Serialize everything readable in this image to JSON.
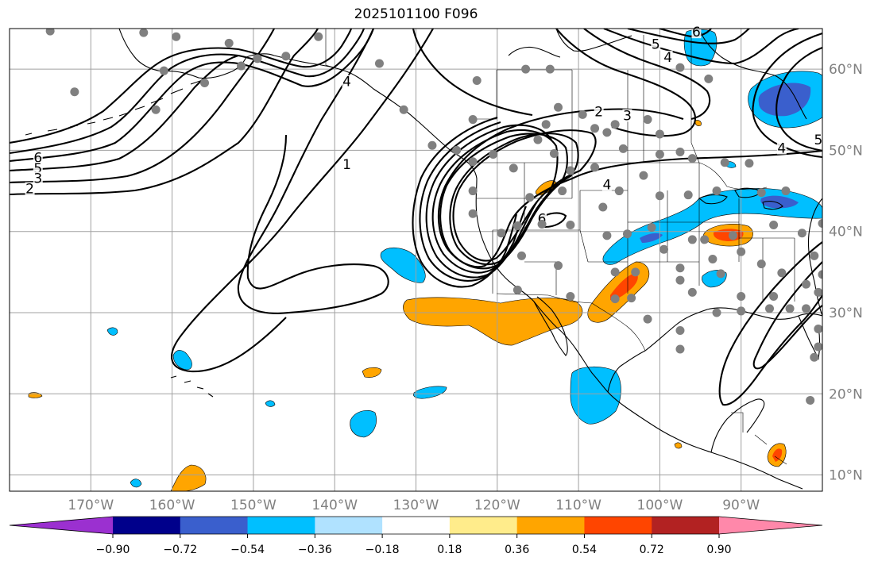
{
  "title": "2025101100 F096",
  "colors": {
    "background": "#ffffff",
    "grid": "#a0a0a0",
    "coast": "#000000",
    "contour": "#000000",
    "station": "#808080",
    "label_gray": "#808080"
  },
  "map": {
    "lon_min": -180,
    "lon_max": -80,
    "lat_min": 8,
    "lat_max": 65
  },
  "lon_ticks": [
    {
      "value": -170,
      "label": "170°W"
    },
    {
      "value": -160,
      "label": "160°W"
    },
    {
      "value": -150,
      "label": "150°W"
    },
    {
      "value": -140,
      "label": "140°W"
    },
    {
      "value": -130,
      "label": "130°W"
    },
    {
      "value": -120,
      "label": "120°W"
    },
    {
      "value": -110,
      "label": "110°W"
    },
    {
      "value": -100,
      "label": "100°W"
    },
    {
      "value": -90,
      "label": "90°W"
    }
  ],
  "lat_ticks": [
    {
      "value": 60,
      "label": "60°N"
    },
    {
      "value": 50,
      "label": "50°N"
    },
    {
      "value": 40,
      "label": "40°N"
    },
    {
      "value": 30,
      "label": "30°N"
    },
    {
      "value": 20,
      "label": "20°N"
    },
    {
      "value": 10,
      "label": "10°N"
    }
  ],
  "colorbar": {
    "colors": [
      "#9b30d0",
      "#00008b",
      "#3a5fcd",
      "#00bfff",
      "#b0e2ff",
      "#ffffff",
      "#ffec8b",
      "#ffa500",
      "#ff4500",
      "#b22222",
      "#ff88aa"
    ],
    "labels": [
      "−0.90",
      "−0.72",
      "−0.54",
      "−0.36",
      "−0.18",
      "0.18",
      "0.36",
      "0.54",
      "0.72",
      "0.90"
    ]
  },
  "contour_labels": [
    {
      "text": "6",
      "lon": -176.5,
      "lat": 48.8
    },
    {
      "text": "5",
      "lon": -176.5,
      "lat": 47.5
    },
    {
      "text": "3",
      "lon": -176.5,
      "lat": 46.3
    },
    {
      "text": "2",
      "lon": -177.5,
      "lat": 45.0
    },
    {
      "text": "1",
      "lon": -138.5,
      "lat": 48.0
    },
    {
      "text": "4",
      "lon": -138.5,
      "lat": 58.2
    },
    {
      "text": "2",
      "lon": -107.5,
      "lat": 54.5
    },
    {
      "text": "3",
      "lon": -104.0,
      "lat": 54.0
    },
    {
      "text": "5",
      "lon": -100.5,
      "lat": 62.8
    },
    {
      "text": "4",
      "lon": -99.0,
      "lat": 61.2
    },
    {
      "text": "6",
      "lon": -95.5,
      "lat": 64.3
    },
    {
      "text": "4",
      "lon": -85.0,
      "lat": 50.0
    },
    {
      "text": "5",
      "lon": -80.5,
      "lat": 51.0
    },
    {
      "text": "4",
      "lon": -106.5,
      "lat": 45.5
    },
    {
      "text": "6",
      "lon": -114.5,
      "lat": 41.3
    }
  ],
  "stations": [
    [
      -175.0,
      64.7
    ],
    [
      -172.0,
      57.2
    ],
    [
      -163.5,
      64.5
    ],
    [
      -159.5,
      64.0
    ],
    [
      -153.0,
      63.2
    ],
    [
      -142.0,
      64.0
    ],
    [
      -161.0,
      59.8
    ],
    [
      -156.0,
      58.3
    ],
    [
      -151.5,
      60.4
    ],
    [
      -149.5,
      61.3
    ],
    [
      -162.0,
      55.0
    ],
    [
      -146.0,
      61.6
    ],
    [
      -134.5,
      60.7
    ],
    [
      -131.5,
      55.0
    ],
    [
      -122.5,
      58.6
    ],
    [
      -116.5,
      60.0
    ],
    [
      -113.5,
      60.0
    ],
    [
      -123.0,
      53.8
    ],
    [
      -112.5,
      55.3
    ],
    [
      -114.0,
      53.2
    ],
    [
      -109.5,
      54.4
    ],
    [
      -108.0,
      52.7
    ],
    [
      -106.5,
      52.2
    ],
    [
      -105.5,
      53.2
    ],
    [
      -101.5,
      53.8
    ],
    [
      -100.0,
      52.0
    ],
    [
      -97.5,
      60.2
    ],
    [
      -94.0,
      58.8
    ],
    [
      -128.0,
      50.6
    ],
    [
      -125.0,
      50.0
    ],
    [
      -123.0,
      48.6
    ],
    [
      -120.5,
      49.5
    ],
    [
      -118.0,
      47.8
    ],
    [
      -115.0,
      51.3
    ],
    [
      -113.0,
      49.6
    ],
    [
      -111.0,
      47.5
    ],
    [
      -108.0,
      47.9
    ],
    [
      -104.5,
      50.2
    ],
    [
      -102.0,
      46.9
    ],
    [
      -100.0,
      49.5
    ],
    [
      -97.5,
      49.8
    ],
    [
      -96.0,
      49.0
    ],
    [
      -92.0,
      48.5
    ],
    [
      -89.0,
      48.4
    ],
    [
      -116.0,
      44.2
    ],
    [
      -112.0,
      45.0
    ],
    [
      -105.0,
      45.0
    ],
    [
      -100.0,
      44.4
    ],
    [
      -96.5,
      44.5
    ],
    [
      -93.0,
      45.0
    ],
    [
      -87.5,
      44.8
    ],
    [
      -84.5,
      45.0
    ],
    [
      -123.0,
      45.0
    ],
    [
      -123.0,
      42.2
    ],
    [
      -119.5,
      39.8
    ],
    [
      -117.5,
      40.7
    ],
    [
      -114.5,
      40.9
    ],
    [
      -111.0,
      40.8
    ],
    [
      -107.0,
      43.0
    ],
    [
      -106.5,
      39.5
    ],
    [
      -104.0,
      39.7
    ],
    [
      -101.0,
      40.5
    ],
    [
      -99.5,
      37.8
    ],
    [
      -96.0,
      39.0
    ],
    [
      -94.5,
      39.0
    ],
    [
      -91.0,
      39.5
    ],
    [
      -86.0,
      40.8
    ],
    [
      -82.5,
      39.8
    ],
    [
      -80.0,
      41.0
    ],
    [
      -117.0,
      37.0
    ],
    [
      -112.5,
      35.8
    ],
    [
      -105.5,
      35.0
    ],
    [
      -103.0,
      35.0
    ],
    [
      -97.5,
      35.5
    ],
    [
      -97.5,
      34.0
    ],
    [
      -96.0,
      32.5
    ],
    [
      -93.5,
      36.6
    ],
    [
      -92.5,
      34.8
    ],
    [
      -90.0,
      37.5
    ],
    [
      -87.5,
      36.0
    ],
    [
      -85.0,
      34.9
    ],
    [
      -86.0,
      32.0
    ],
    [
      -81.0,
      37.0
    ],
    [
      -80.0,
      34.7
    ],
    [
      -80.5,
      32.5
    ],
    [
      -117.5,
      32.8
    ],
    [
      -111.0,
      32.0
    ],
    [
      -105.5,
      31.7
    ],
    [
      -103.5,
      31.8
    ],
    [
      -101.5,
      29.2
    ],
    [
      -97.5,
      27.8
    ],
    [
      -97.5,
      25.5
    ],
    [
      -93.0,
      30.0
    ],
    [
      -90.0,
      32.0
    ],
    [
      -90.0,
      30.2
    ],
    [
      -86.5,
      30.5
    ],
    [
      -84.0,
      30.5
    ],
    [
      -82.0,
      30.5
    ],
    [
      -80.5,
      28.0
    ],
    [
      -80.5,
      25.8
    ],
    [
      -81.0,
      24.5
    ],
    [
      -81.5,
      19.2
    ],
    [
      -82.0,
      33.5
    ]
  ]
}
